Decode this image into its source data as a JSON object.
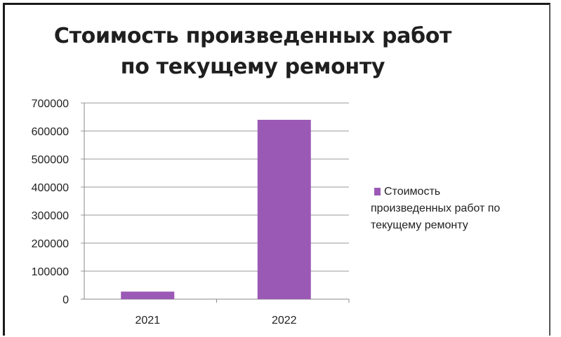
{
  "chart_data": {
    "type": "bar",
    "title_lines": [
      "Стоимость произведенных работ",
      "по текущему ремонту"
    ],
    "categories": [
      "2021",
      "2022"
    ],
    "series": [
      {
        "name_lines": [
          "Стоимость",
          "произведенных работ по",
          "текущему ремонту"
        ],
        "values": [
          27000,
          640000
        ],
        "color": "#9b59b6"
      }
    ],
    "ylim": [
      0,
      700000
    ],
    "yticks": [
      "0",
      "100000",
      "200000",
      "300000",
      "400000",
      "500000",
      "600000",
      "700000"
    ],
    "grid": true,
    "legend_position": "right"
  }
}
